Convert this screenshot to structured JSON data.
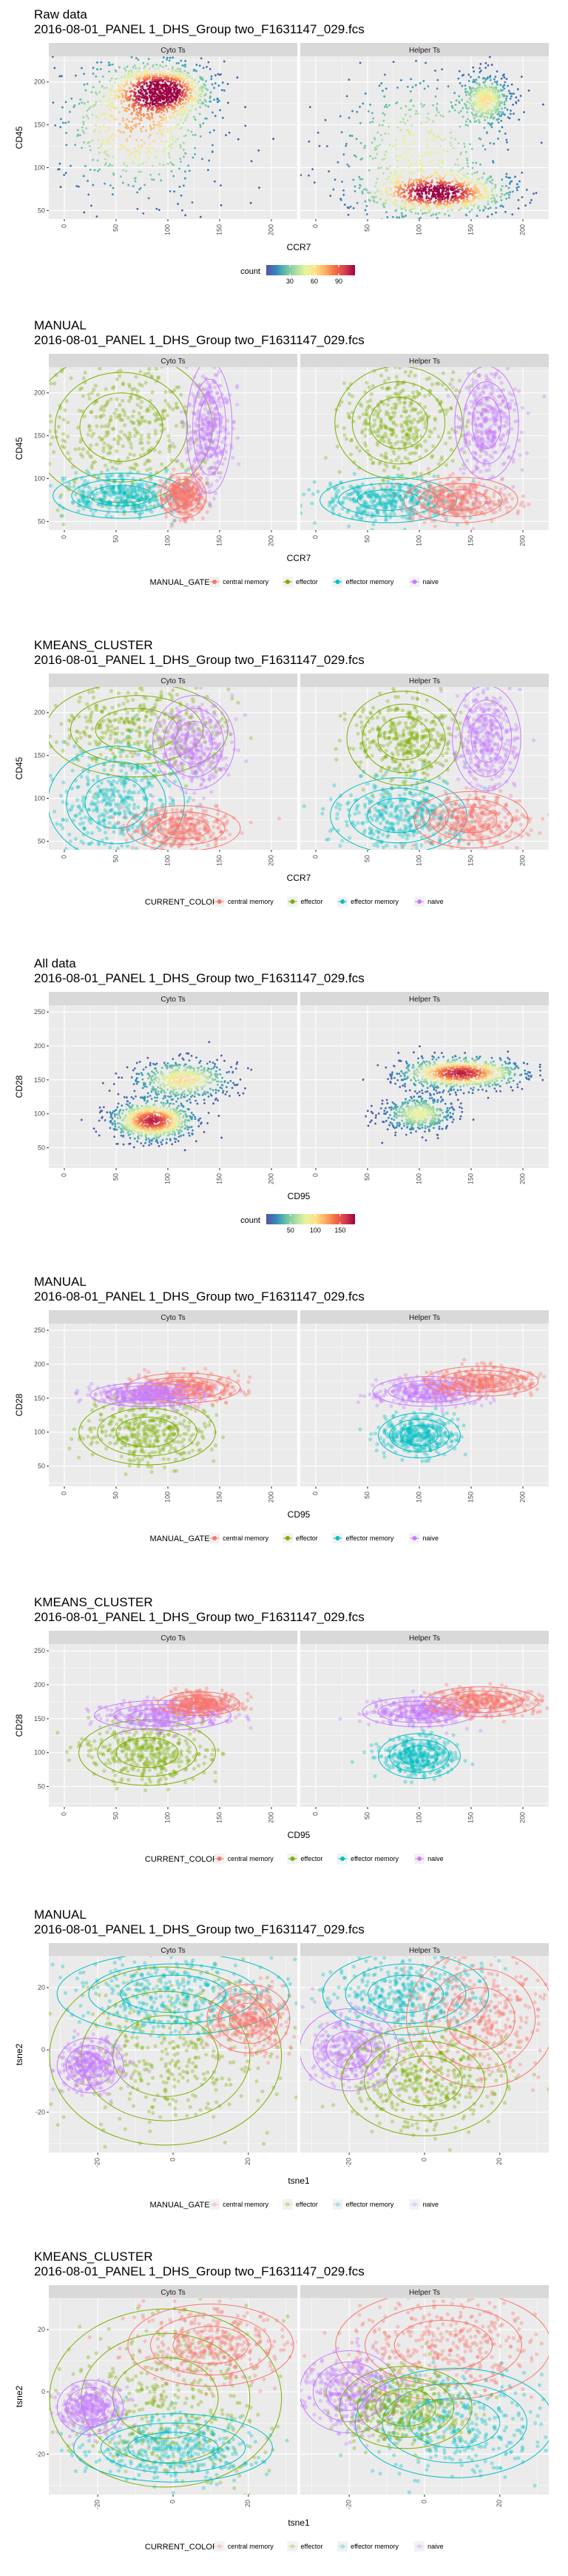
{
  "page": {
    "title": ""
  },
  "chart_data": [
    {
      "type": "heatmap",
      "title": "Raw data",
      "subtitle": "2016-08-01_PANEL 1_DHS_Group two_F1631147_029.fcs",
      "xlabel": "CCR7",
      "ylabel": "CD45",
      "facets": [
        "Cyto Ts",
        "Helper Ts"
      ],
      "xlim": [
        -15,
        225
      ],
      "ylim": [
        40,
        230
      ],
      "xticks": [
        0,
        50,
        100,
        150,
        200
      ],
      "yticks": [
        50,
        100,
        150,
        200
      ],
      "grid": true,
      "legend": {
        "title": "count",
        "ticks": [
          30,
          60,
          90
        ],
        "range": [
          1,
          110
        ],
        "position": "bottom"
      },
      "density": [
        {
          "facet": 0,
          "x": 95,
          "y": 190,
          "sx": 22,
          "sy": 14,
          "w": 1.0
        },
        {
          "facet": 0,
          "x": 70,
          "y": 150,
          "sx": 40,
          "sy": 45,
          "w": 0.7
        },
        {
          "facet": 1,
          "x": 120,
          "y": 70,
          "sx": 35,
          "sy": 12,
          "w": 0.9
        },
        {
          "facet": 1,
          "x": 165,
          "y": 180,
          "sx": 12,
          "sy": 14,
          "w": 0.5
        },
        {
          "facet": 1,
          "x": 100,
          "y": 120,
          "sx": 45,
          "sy": 50,
          "w": 0.5
        }
      ]
    },
    {
      "type": "scatter",
      "title": "MANUAL",
      "subtitle": "2016-08-01_PANEL 1_DHS_Group two_F1631147_029.fcs",
      "xlabel": "CCR7",
      "ylabel": "CD45",
      "facets": [
        "Cyto Ts",
        "Helper Ts"
      ],
      "xlim": [
        -15,
        225
      ],
      "ylim": [
        40,
        230
      ],
      "xticks": [
        0,
        50,
        100,
        150,
        200
      ],
      "yticks": [
        50,
        100,
        150,
        200
      ],
      "grid": true,
      "legend": {
        "title": "MANUAL_GATE",
        "entries": [
          "central memory",
          "effector",
          "effector memory",
          "naive"
        ],
        "colors": [
          "#F8766D",
          "#7CAE00",
          "#00BFC4",
          "#C77CFF"
        ],
        "position": "bottom"
      },
      "clusters": [
        {
          "facet": 0,
          "cls": 1,
          "x": 55,
          "y": 160,
          "sx": 40,
          "sy": 40
        },
        {
          "facet": 0,
          "cls": 2,
          "x": 55,
          "y": 80,
          "sx": 30,
          "sy": 12
        },
        {
          "facet": 0,
          "cls": 0,
          "x": 115,
          "y": 80,
          "sx": 10,
          "sy": 12
        },
        {
          "facet": 0,
          "cls": 3,
          "x": 140,
          "y": 160,
          "sx": 10,
          "sy": 35
        },
        {
          "facet": 1,
          "cls": 1,
          "x": 80,
          "y": 165,
          "sx": 28,
          "sy": 30
        },
        {
          "facet": 1,
          "cls": 2,
          "x": 70,
          "y": 75,
          "sx": 30,
          "sy": 12
        },
        {
          "facet": 1,
          "cls": 0,
          "x": 140,
          "y": 75,
          "sx": 25,
          "sy": 12
        },
        {
          "facet": 1,
          "cls": 3,
          "x": 165,
          "y": 165,
          "sx": 14,
          "sy": 30
        }
      ]
    },
    {
      "type": "scatter",
      "title": "KMEANS_CLUSTER",
      "subtitle": "2016-08-01_PANEL 1_DHS_Group two_F1631147_029.fcs",
      "xlabel": "CCR7",
      "ylabel": "CD45",
      "facets": [
        "Cyto Ts",
        "Helper Ts"
      ],
      "xlim": [
        -15,
        225
      ],
      "ylim": [
        40,
        230
      ],
      "xticks": [
        0,
        50,
        100,
        150,
        200
      ],
      "yticks": [
        50,
        100,
        150,
        200
      ],
      "grid": true,
      "legend": {
        "title": "CURRENT_COLOR",
        "entries": [
          "central memory",
          "effector",
          "effector memory",
          "naive"
        ],
        "colors": [
          "#F8766D",
          "#7CAE00",
          "#00BFC4",
          "#C77CFF"
        ],
        "position": "bottom"
      },
      "clusters": [
        {
          "facet": 0,
          "cls": 1,
          "x": 70,
          "y": 180,
          "sx": 40,
          "sy": 25
        },
        {
          "facet": 0,
          "cls": 2,
          "x": 50,
          "y": 95,
          "sx": 30,
          "sy": 30
        },
        {
          "facet": 0,
          "cls": 0,
          "x": 115,
          "y": 65,
          "sx": 25,
          "sy": 12
        },
        {
          "facet": 0,
          "cls": 3,
          "x": 125,
          "y": 165,
          "sx": 18,
          "sy": 25
        },
        {
          "facet": 1,
          "cls": 1,
          "x": 85,
          "y": 170,
          "sx": 25,
          "sy": 25
        },
        {
          "facet": 1,
          "cls": 2,
          "x": 80,
          "y": 80,
          "sx": 30,
          "sy": 20
        },
        {
          "facet": 1,
          "cls": 0,
          "x": 150,
          "y": 75,
          "sx": 25,
          "sy": 15
        },
        {
          "facet": 1,
          "cls": 3,
          "x": 165,
          "y": 170,
          "sx": 15,
          "sy": 28
        }
      ]
    },
    {
      "type": "heatmap",
      "title": "All data",
      "subtitle": "2016-08-01_PANEL 1_DHS_Group two_F1631147_029.fcs",
      "xlabel": "CD95",
      "ylabel": "CD28",
      "facets": [
        "Cyto Ts",
        "Helper Ts"
      ],
      "xlim": [
        -15,
        225
      ],
      "ylim": [
        20,
        260
      ],
      "xticks": [
        0,
        50,
        100,
        150,
        200
      ],
      "yticks": [
        50,
        100,
        150,
        200,
        250
      ],
      "grid": true,
      "legend": {
        "title": "count",
        "ticks": [
          50,
          100,
          150
        ],
        "range": [
          1,
          180
        ],
        "position": "bottom"
      },
      "density": [
        {
          "facet": 0,
          "x": 85,
          "y": 90,
          "sx": 20,
          "sy": 15,
          "w": 1.0
        },
        {
          "facet": 0,
          "x": 115,
          "y": 150,
          "sx": 25,
          "sy": 15,
          "w": 0.6
        },
        {
          "facet": 1,
          "x": 140,
          "y": 160,
          "sx": 30,
          "sy": 12,
          "w": 1.0
        },
        {
          "facet": 1,
          "x": 100,
          "y": 100,
          "sx": 18,
          "sy": 14,
          "w": 0.5
        }
      ]
    },
    {
      "type": "scatter",
      "title": "MANUAL",
      "subtitle": "2016-08-01_PANEL 1_DHS_Group two_F1631147_029.fcs",
      "xlabel": "CD95",
      "ylabel": "CD28",
      "facets": [
        "Cyto Ts",
        "Helper Ts"
      ],
      "xlim": [
        -15,
        225
      ],
      "ylim": [
        20,
        260
      ],
      "xticks": [
        0,
        50,
        100,
        150,
        200
      ],
      "yticks": [
        50,
        100,
        150,
        200,
        250
      ],
      "grid": true,
      "legend": {
        "title": "MANUAL_GATE",
        "entries": [
          "central memory",
          "effector",
          "effector memory",
          "naive"
        ],
        "colors": [
          "#F8766D",
          "#7CAE00",
          "#00BFC4",
          "#C77CFF"
        ],
        "position": "bottom"
      },
      "clusters": [
        {
          "facet": 0,
          "cls": 1,
          "x": 80,
          "y": 100,
          "sx": 30,
          "sy": 22
        },
        {
          "facet": 0,
          "cls": 0,
          "x": 115,
          "y": 165,
          "sx": 25,
          "sy": 10
        },
        {
          "facet": 0,
          "cls": 3,
          "x": 80,
          "y": 155,
          "sx": 25,
          "sy": 8
        },
        {
          "facet": 1,
          "cls": 2,
          "x": 100,
          "y": 95,
          "sx": 18,
          "sy": 15
        },
        {
          "facet": 1,
          "cls": 3,
          "x": 110,
          "y": 160,
          "sx": 25,
          "sy": 10
        },
        {
          "facet": 1,
          "cls": 0,
          "x": 160,
          "y": 175,
          "sx": 25,
          "sy": 10
        }
      ]
    },
    {
      "type": "scatter",
      "title": "KMEANS_CLUSTER",
      "subtitle": "2016-08-01_PANEL 1_DHS_Group two_F1631147_029.fcs",
      "xlabel": "CD95",
      "ylabel": "CD28",
      "facets": [
        "Cyto Ts",
        "Helper Ts"
      ],
      "xlim": [
        -15,
        225
      ],
      "ylim": [
        20,
        260
      ],
      "xticks": [
        0,
        50,
        100,
        150,
        200
      ],
      "yticks": [
        50,
        100,
        150,
        200,
        250
      ],
      "grid": true,
      "legend": {
        "title": "CURRENT_COLOR",
        "entries": [
          "central memory",
          "effector",
          "effector memory",
          "naive"
        ],
        "colors": [
          "#F8766D",
          "#7CAE00",
          "#00BFC4",
          "#C77CFF"
        ],
        "position": "bottom"
      },
      "clusters": [
        {
          "facet": 0,
          "cls": 1,
          "x": 80,
          "y": 100,
          "sx": 30,
          "sy": 22
        },
        {
          "facet": 0,
          "cls": 3,
          "x": 95,
          "y": 155,
          "sx": 30,
          "sy": 10
        },
        {
          "facet": 0,
          "cls": 0,
          "x": 130,
          "y": 172,
          "sx": 18,
          "sy": 8
        },
        {
          "facet": 1,
          "cls": 2,
          "x": 100,
          "y": 95,
          "sx": 18,
          "sy": 15
        },
        {
          "facet": 1,
          "cls": 3,
          "x": 100,
          "y": 160,
          "sx": 25,
          "sy": 10
        },
        {
          "facet": 1,
          "cls": 0,
          "x": 160,
          "y": 175,
          "sx": 25,
          "sy": 10
        }
      ]
    },
    {
      "type": "scatter",
      "title": "MANUAL",
      "subtitle": "2016-08-01_PANEL 1_DHS_Group two_F1631147_029.fcs",
      "xlabel": "tsne1",
      "ylabel": "tsne2",
      "facets": [
        "Cyto Ts",
        "Helper Ts"
      ],
      "xlim": [
        -33,
        33
      ],
      "ylim": [
        -33,
        30
      ],
      "xticks": [
        -20,
        0,
        20
      ],
      "yticks": [
        -20,
        0,
        20
      ],
      "grid": true,
      "legend": {
        "title": "MANUAL_GATE",
        "entries": [
          "central memory",
          "effector",
          "effector memory",
          "naive"
        ],
        "colors": [
          "#F8766D",
          "#7CAE00",
          "#00BFC4",
          "#C77CFF"
        ],
        "position": "bottom",
        "faded": true
      },
      "clusters": [
        {
          "facet": 0,
          "cls": 1,
          "x": -2,
          "y": -2,
          "sx": 14,
          "sy": 13
        },
        {
          "facet": 0,
          "cls": 2,
          "x": 0,
          "y": 18,
          "sx": 14,
          "sy": 6
        },
        {
          "facet": 0,
          "cls": 0,
          "x": 20,
          "y": 10,
          "sx": 5,
          "sy": 5
        },
        {
          "facet": 0,
          "cls": 3,
          "x": -22,
          "y": -5,
          "sx": 4,
          "sy": 4
        },
        {
          "facet": 1,
          "cls": 2,
          "x": -5,
          "y": 18,
          "sx": 10,
          "sy": 6
        },
        {
          "facet": 1,
          "cls": 0,
          "x": 15,
          "y": 10,
          "sx": 9,
          "sy": 10
        },
        {
          "facet": 1,
          "cls": 3,
          "x": -20,
          "y": 0,
          "sx": 6,
          "sy": 6
        },
        {
          "facet": 1,
          "cls": 1,
          "x": 0,
          "y": -10,
          "sx": 10,
          "sy": 8
        }
      ]
    },
    {
      "type": "scatter",
      "title": "KMEANS_CLUSTER",
      "subtitle": "2016-08-01_PANEL 1_DHS_Group two_F1631147_029.fcs",
      "xlabel": "tsne1",
      "ylabel": "tsne2",
      "facets": [
        "Cyto Ts",
        "Helper Ts"
      ],
      "xlim": [
        -33,
        33
      ],
      "ylim": [
        -33,
        30
      ],
      "xticks": [
        -20,
        0,
        20
      ],
      "yticks": [
        -20,
        0,
        20
      ],
      "grid": true,
      "legend": {
        "title": "CURRENT_COLOR",
        "entries": [
          "central memory",
          "effector",
          "effector memory",
          "naive"
        ],
        "colors": [
          "#F8766D",
          "#7CAE00",
          "#00BFC4",
          "#C77CFF"
        ],
        "position": "bottom",
        "faded": true
      },
      "clusters": [
        {
          "facet": 0,
          "cls": 1,
          "x": -2,
          "y": -2,
          "sx": 14,
          "sy": 13
        },
        {
          "facet": 0,
          "cls": 2,
          "x": 0,
          "y": -18,
          "sx": 12,
          "sy": 5
        },
        {
          "facet": 0,
          "cls": 0,
          "x": 10,
          "y": 15,
          "sx": 10,
          "sy": 6
        },
        {
          "facet": 0,
          "cls": 3,
          "x": -22,
          "y": -5,
          "sx": 4,
          "sy": 4
        },
        {
          "facet": 1,
          "cls": 0,
          "x": 5,
          "y": 15,
          "sx": 13,
          "sy": 8
        },
        {
          "facet": 1,
          "cls": 2,
          "x": 8,
          "y": -10,
          "sx": 12,
          "sy": 8
        },
        {
          "facet": 1,
          "cls": 3,
          "x": -20,
          "y": 0,
          "sx": 6,
          "sy": 6
        },
        {
          "facet": 1,
          "cls": 1,
          "x": -5,
          "y": -5,
          "sx": 8,
          "sy": 6
        }
      ]
    }
  ]
}
